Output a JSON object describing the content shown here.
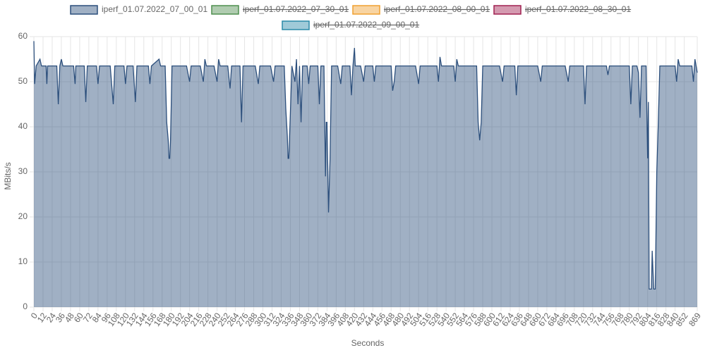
{
  "chart_data": {
    "type": "area",
    "y_label": "MBits/s",
    "x_label": "Seconds",
    "series": [
      {
        "name": "iperf_01.07.2022_07_00_01",
        "color": "#2c4f7c",
        "hidden": false,
        "x": [
          0,
          1,
          3,
          8,
          10,
          16,
          17,
          18,
          30,
          32,
          34,
          36,
          38,
          52,
          54,
          55,
          66,
          68,
          70,
          82,
          84,
          86,
          100,
          104,
          106,
          118,
          120,
          122,
          130,
          133,
          135,
          150,
          152,
          154,
          164,
          166,
          172,
          174,
          176,
          177,
          178,
          179,
          181,
          200,
          204,
          206,
          218,
          222,
          224,
          226,
          236,
          240,
          242,
          244,
          254,
          257,
          259,
          270,
          272,
          274,
          290,
          294,
          296,
          310,
          314,
          316,
          328,
          330,
          332,
          333,
          334,
          336,
          338,
          342,
          344,
          346,
          348,
          350,
          352,
          358,
          360,
          362,
          372,
          374,
          376,
          380,
          382,
          383,
          384,
          386,
          388,
          390,
          398,
          402,
          404,
          414,
          416,
          418,
          420,
          421,
          428,
          432,
          434,
          444,
          446,
          448,
          468,
          470,
          472,
          474,
          500,
          504,
          506,
          528,
          530,
          532,
          534,
          550,
          552,
          554,
          556,
          580,
          582,
          584,
          586,
          588,
          610,
          614,
          616,
          630,
          632,
          634,
          660,
          664,
          666,
          696,
          700,
          702,
          720,
          722,
          724,
          750,
          752,
          754,
          780,
          782,
          784,
          790,
          792,
          794,
          796,
          802,
          804,
          805,
          806,
          809,
          810,
          812,
          814,
          816,
          818,
          820,
          840,
          842,
          844,
          846,
          862,
          864,
          866,
          869
        ],
        "values": [
          59,
          49.5,
          53.5,
          55,
          53.5,
          53.5,
          49.5,
          53.5,
          53.5,
          45,
          53.5,
          55,
          53.5,
          53.5,
          49.5,
          53.5,
          53.5,
          45.5,
          53.5,
          53.5,
          49.5,
          53.5,
          53.5,
          45,
          53.5,
          53.5,
          49.5,
          53.5,
          53.5,
          45.5,
          53.5,
          53.5,
          49.5,
          53.5,
          55,
          53.5,
          53.5,
          41,
          37,
          33,
          33,
          37,
          53.5,
          53.5,
          50,
          53.5,
          53.5,
          50,
          55,
          53.5,
          53.5,
          50,
          55,
          53.5,
          53.5,
          48.5,
          53.5,
          53.5,
          41,
          53.5,
          53.5,
          49.5,
          53.5,
          53.5,
          50,
          53.5,
          53.5,
          44,
          38,
          33,
          33,
          43,
          53.5,
          50,
          55,
          45,
          53.5,
          41,
          53.5,
          53.5,
          49.5,
          53.5,
          53.5,
          45,
          53.5,
          53.5,
          29,
          41,
          41,
          21,
          33,
          53.5,
          53.5,
          49.5,
          53.5,
          53.5,
          47,
          53.5,
          57.5,
          53.5,
          53.5,
          50,
          53.5,
          53.5,
          50,
          53.5,
          53.5,
          48,
          50,
          53.5,
          53.5,
          49.5,
          53.5,
          53.5,
          50,
          55.5,
          53.5,
          53.5,
          50,
          55,
          53.5,
          53.5,
          41,
          37,
          41,
          53.5,
          53.5,
          50,
          53.5,
          53.5,
          47,
          53.5,
          53.5,
          50,
          53.5,
          53.5,
          50,
          53.5,
          53.5,
          45,
          53.5,
          53.5,
          51.5,
          53.5,
          53.5,
          45,
          53.5,
          53.5,
          52,
          42,
          53.5,
          53.5,
          33,
          45.5,
          4,
          4,
          12.5,
          4,
          4,
          30,
          41,
          53.5,
          53.5,
          50,
          55,
          53.5,
          53.5,
          50,
          55,
          52
        ]
      },
      {
        "name": "iperf_01.07.2022_07_30_01",
        "color": "#4f8f4f",
        "hidden": true
      },
      {
        "name": "iperf_01.07.2022_08_00_01",
        "color": "#f0a030",
        "hidden": true
      },
      {
        "name": "iperf_01.07.2022_08_30_01",
        "color": "#a02050",
        "hidden": true
      },
      {
        "name": "iperf_01.07.2022_09_00_01",
        "color": "#2a8aa8",
        "hidden": true
      }
    ],
    "xlim": [
      0,
      869
    ],
    "xticks": [
      0,
      12,
      24,
      36,
      48,
      60,
      72,
      84,
      96,
      108,
      120,
      132,
      144,
      156,
      168,
      180,
      192,
      204,
      216,
      228,
      240,
      252,
      264,
      276,
      288,
      300,
      312,
      324,
      336,
      348,
      360,
      372,
      384,
      396,
      408,
      420,
      432,
      444,
      456,
      468,
      480,
      492,
      504,
      516,
      528,
      540,
      552,
      564,
      576,
      588,
      600,
      612,
      624,
      636,
      648,
      660,
      672,
      684,
      696,
      708,
      720,
      732,
      744,
      756,
      768,
      780,
      792,
      804,
      816,
      828,
      840,
      852,
      869
    ],
    "ylim": [
      0,
      60
    ],
    "yticks": [
      0,
      10,
      20,
      30,
      40,
      50,
      60
    ],
    "grid": true
  }
}
